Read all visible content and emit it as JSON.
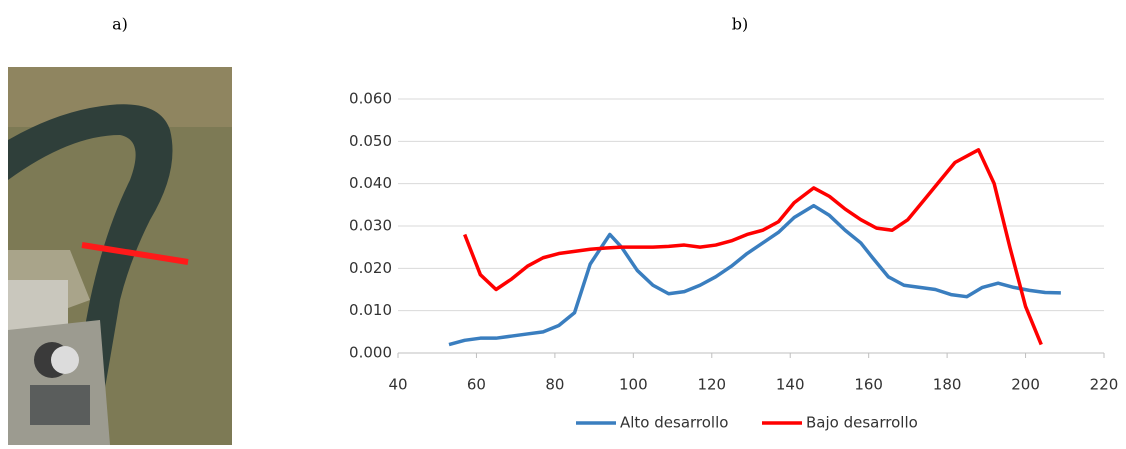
{
  "figure": {
    "labels": [
      "a)",
      "b)"
    ]
  },
  "chart_data": {
    "type": "line",
    "xlim": [
      40,
      220
    ],
    "xticks": [
      40,
      60,
      80,
      100,
      120,
      140,
      160,
      180,
      200,
      220
    ],
    "ylim": [
      0,
      0.06
    ],
    "yticks": [
      {
        "value": 0,
        "label": "0.000"
      },
      {
        "value": 0.01,
        "label": "0.010"
      },
      {
        "value": 0.02,
        "label": "0.020"
      },
      {
        "value": 0.03,
        "label": "0.030"
      },
      {
        "value": 0.04,
        "label": "0.040"
      },
      {
        "value": 0.05,
        "label": "0.050"
      },
      {
        "value": 0.06,
        "label": "0.060"
      }
    ],
    "grid": true,
    "legend": "bottom",
    "series": [
      {
        "name": "Alto desarrollo",
        "color": "#3a7ebf",
        "x": [
          53,
          57,
          61,
          65,
          69,
          73,
          77,
          81,
          85,
          89,
          94,
          97,
          101,
          105,
          109,
          113,
          117,
          121,
          125,
          129,
          133,
          137,
          141,
          146,
          150,
          154,
          158,
          161,
          165,
          169,
          173,
          177,
          181,
          185,
          189,
          193,
          197,
          201,
          205,
          209
        ],
        "values": [
          0.002,
          0.003,
          0.0035,
          0.0035,
          0.004,
          0.0045,
          0.005,
          0.0065,
          0.0095,
          0.021,
          0.028,
          0.025,
          0.0195,
          0.016,
          0.014,
          0.0145,
          0.016,
          0.018,
          0.0205,
          0.0235,
          0.026,
          0.0285,
          0.032,
          0.0348,
          0.0325,
          0.029,
          0.026,
          0.0225,
          0.018,
          0.016,
          0.0155,
          0.015,
          0.0138,
          0.0133,
          0.0155,
          0.0165,
          0.0155,
          0.0148,
          0.0143,
          0.0142
        ]
      },
      {
        "name": "Bajo desarrollo",
        "color": "#ff0000",
        "x": [
          57,
          61,
          65,
          69,
          73,
          77,
          81,
          85,
          89,
          93,
          97,
          101,
          105,
          109,
          113,
          117,
          121,
          125,
          129,
          133,
          137,
          141,
          146,
          150,
          154,
          158,
          162,
          166,
          170,
          174,
          178,
          182,
          188,
          192,
          196,
          200,
          204
        ],
        "values": [
          0.028,
          0.0185,
          0.015,
          0.0175,
          0.0205,
          0.0225,
          0.0235,
          0.024,
          0.0245,
          0.0248,
          0.025,
          0.025,
          0.025,
          0.0252,
          0.0255,
          0.025,
          0.0255,
          0.0265,
          0.028,
          0.029,
          0.031,
          0.0355,
          0.039,
          0.037,
          0.034,
          0.0315,
          0.0295,
          0.029,
          0.0315,
          0.036,
          0.0405,
          0.045,
          0.048,
          0.04,
          0.025,
          0.011,
          0.002
        ]
      }
    ]
  }
}
